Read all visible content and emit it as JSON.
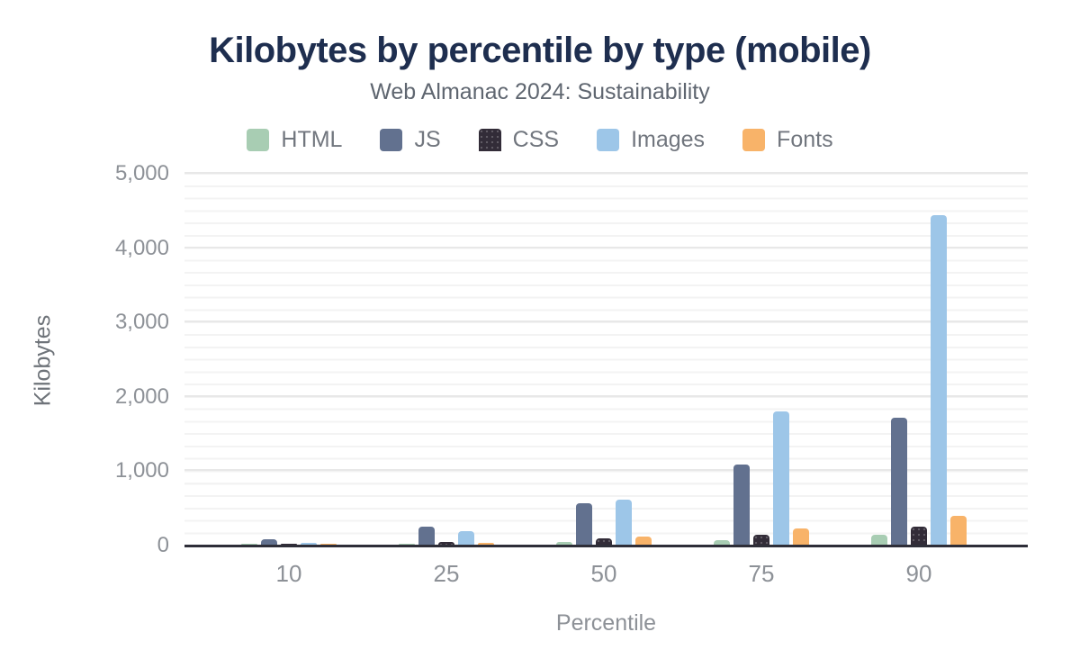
{
  "title": "Kilobytes by percentile by type (mobile)",
  "subtitle": "Web Almanac 2024: Sustainability",
  "axes": {
    "xlabel": "Percentile",
    "ylabel": "Kilobytes"
  },
  "palette": {
    "title_color": "#1e2e4f",
    "subtitle_color": "#5f6670",
    "axis_text_color": "#8d9197",
    "axis_line_color": "#2e2e38",
    "html_color": "#a8cdb3",
    "js_color": "#62718f",
    "css_color": "#322c38",
    "images_color": "#9dc6e8",
    "fonts_color": "#f8b369"
  },
  "chart_data": {
    "type": "bar",
    "title": "Kilobytes by percentile by type (mobile)",
    "subtitle": "Web Almanac 2024: Sustainability",
    "xlabel": "Percentile",
    "ylabel": "Kilobytes",
    "categories": [
      "10",
      "25",
      "50",
      "75",
      "90"
    ],
    "series": [
      {
        "name": "HTML",
        "color": "#a8cdb3",
        "pattern": "solid",
        "values": [
          8,
          16,
          33,
          62,
          138
        ]
      },
      {
        "name": "JS",
        "color": "#62718f",
        "pattern": "solid",
        "values": [
          73,
          240,
          557,
          1080,
          1707
        ]
      },
      {
        "name": "CSS",
        "color": "#322c38",
        "pattern": "dots",
        "values": [
          12,
          37,
          80,
          136,
          245
        ]
      },
      {
        "name": "Images",
        "color": "#9dc6e8",
        "pattern": "solid",
        "values": [
          30,
          180,
          607,
          1797,
          4430
        ]
      },
      {
        "name": "Fonts",
        "color": "#f8b369",
        "pattern": "solid",
        "values": [
          2,
          28,
          106,
          218,
          382
        ]
      }
    ],
    "ylim": [
      0,
      5000
    ],
    "yticks": [
      {
        "value": 0,
        "label": "0"
      },
      {
        "value": 1000,
        "label": "1,000"
      },
      {
        "value": 2000,
        "label": "2,000"
      },
      {
        "value": 3000,
        "label": "3,000"
      },
      {
        "value": 4000,
        "label": "4,000"
      },
      {
        "value": 5000,
        "label": "5,000"
      }
    ],
    "legend_position": "top",
    "grid": "horizontal"
  }
}
